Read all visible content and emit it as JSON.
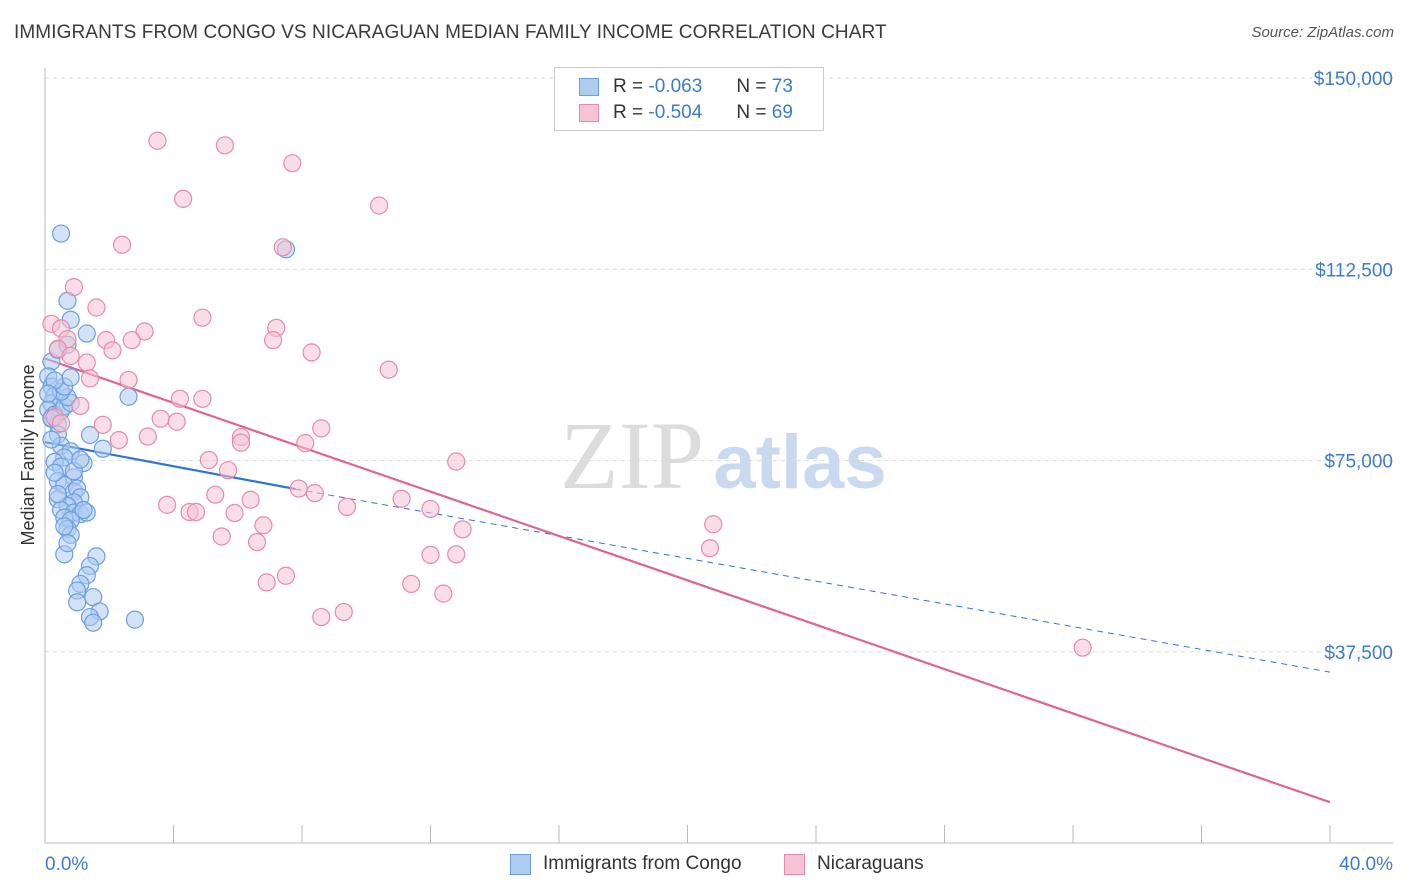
{
  "title": "IMMIGRANTS FROM CONGO VS NICARAGUAN MEDIAN FAMILY INCOME CORRELATION CHART",
  "source": "Source: ZipAtlas.com",
  "watermark": {
    "zip": "ZIP",
    "atlas": "atlas"
  },
  "legend": {
    "rows": [
      {
        "r_label": "R =",
        "r_value": "-0.063",
        "n_label": "N =",
        "n_value": "73",
        "color": "#aecbf0",
        "border": "#6a9fe0"
      },
      {
        "r_label": "R =",
        "r_value": "-0.504",
        "n_label": "N =",
        "n_value": "69",
        "color": "#f6c3d3",
        "border": "#e88aa9"
      }
    ]
  },
  "bottom_legend": [
    {
      "label": "Immigrants from Congo",
      "color": "#aecbf0",
      "border": "#6a9fe0"
    },
    {
      "label": "Nicaraguans",
      "color": "#f6c3d3",
      "border": "#e88aa9"
    }
  ],
  "chart_data": {
    "type": "scatter",
    "title": "IMMIGRANTS FROM CONGO VS NICARAGUAN MEDIAN FAMILY INCOME CORRELATION CHART",
    "xlabel": "",
    "ylabel": "Median Family Income",
    "xlim": [
      0,
      40
    ],
    "ylim": [
      0,
      150000
    ],
    "x_tick_labels": [
      "0.0%",
      "40.0%"
    ],
    "y_ticks": [
      37500,
      75000,
      112500,
      150000
    ],
    "y_tick_labels": [
      "$37,500",
      "$75,000",
      "$112,500",
      "$150,000"
    ],
    "grid": true,
    "series": [
      {
        "name": "Immigrants from Congo",
        "color": "#aecbf0",
        "stroke": "#6a9fe0",
        "line_color": "#2f73d6",
        "trend": {
          "x_solid": [
            0,
            7.8
          ],
          "y_solid": [
            78600,
            69400
          ],
          "x_dash": [
            7.8,
            40
          ],
          "y_dash": [
            69400,
            33500
          ]
        },
        "points": [
          [
            0.2,
            94400
          ],
          [
            0.1,
            91500
          ],
          [
            0.2,
            89500
          ],
          [
            0.3,
            87700
          ],
          [
            0.2,
            86200
          ],
          [
            0.1,
            85000
          ],
          [
            0.3,
            84000
          ],
          [
            0.2,
            83200
          ],
          [
            0.4,
            82100
          ],
          [
            0.5,
            84700
          ],
          [
            0.6,
            85600
          ],
          [
            0.8,
            86300
          ],
          [
            0.7,
            87400
          ],
          [
            0.5,
            88500
          ],
          [
            0.6,
            89500
          ],
          [
            0.3,
            90700
          ],
          [
            0.8,
            91300
          ],
          [
            0.4,
            96700
          ],
          [
            0.7,
            97700
          ],
          [
            0.8,
            102600
          ],
          [
            0.7,
            106300
          ],
          [
            1.3,
            99900
          ],
          [
            0.5,
            119500
          ],
          [
            7.5,
            116400
          ],
          [
            2.6,
            87500
          ],
          [
            0.4,
            80100
          ],
          [
            1.4,
            80000
          ],
          [
            0.5,
            77900
          ],
          [
            0.8,
            76800
          ],
          [
            1.8,
            77300
          ],
          [
            0.6,
            75600
          ],
          [
            0.3,
            74700
          ],
          [
            0.5,
            73800
          ],
          [
            1.2,
            74500
          ],
          [
            0.9,
            71700
          ],
          [
            0.4,
            71000
          ],
          [
            0.6,
            70200
          ],
          [
            0.9,
            68900
          ],
          [
            1.0,
            69500
          ],
          [
            1.1,
            67800
          ],
          [
            0.4,
            67400
          ],
          [
            0.9,
            66800
          ],
          [
            0.7,
            66100
          ],
          [
            0.5,
            65300
          ],
          [
            0.9,
            64800
          ],
          [
            1.1,
            64500
          ],
          [
            1.3,
            64800
          ],
          [
            0.6,
            63800
          ],
          [
            0.8,
            63300
          ],
          [
            0.7,
            61600
          ],
          [
            0.8,
            60400
          ],
          [
            0.6,
            56600
          ],
          [
            1.6,
            56200
          ],
          [
            1.4,
            54300
          ],
          [
            1.3,
            52500
          ],
          [
            1.1,
            50800
          ],
          [
            1.0,
            49500
          ],
          [
            1.5,
            48200
          ],
          [
            1.7,
            45400
          ],
          [
            1.4,
            44300
          ],
          [
            2.8,
            43800
          ],
          [
            1.5,
            43200
          ],
          [
            0.2,
            79100
          ],
          [
            0.3,
            72600
          ],
          [
            0.1,
            88100
          ],
          [
            0.2,
            83300
          ],
          [
            0.9,
            72900
          ],
          [
            1.1,
            75200
          ],
          [
            0.4,
            68400
          ],
          [
            0.6,
            62100
          ],
          [
            1.2,
            65300
          ],
          [
            0.7,
            58800
          ],
          [
            1.0,
            47200
          ]
        ]
      },
      {
        "name": "Nicaraguans",
        "color": "#f6c3d3",
        "stroke": "#e88aa9",
        "line_color": "#e0648f",
        "trend": {
          "x_solid": [
            0,
            40
          ],
          "y_solid": [
            95000,
            8000
          ]
        },
        "points": [
          [
            3.5,
            137700
          ],
          [
            5.6,
            136800
          ],
          [
            7.7,
            133300
          ],
          [
            4.3,
            126300
          ],
          [
            10.4,
            125000
          ],
          [
            2.4,
            117300
          ],
          [
            7.4,
            116800
          ],
          [
            0.9,
            109000
          ],
          [
            1.6,
            105000
          ],
          [
            4.9,
            103000
          ],
          [
            0.2,
            101800
          ],
          [
            0.5,
            100900
          ],
          [
            7.2,
            101000
          ],
          [
            3.1,
            100300
          ],
          [
            0.7,
            98800
          ],
          [
            1.9,
            98600
          ],
          [
            2.7,
            98600
          ],
          [
            7.1,
            98600
          ],
          [
            2.1,
            96600
          ],
          [
            8.3,
            96200
          ],
          [
            0.4,
            96900
          ],
          [
            0.8,
            95500
          ],
          [
            1.3,
            94200
          ],
          [
            10.7,
            92800
          ],
          [
            1.4,
            91100
          ],
          [
            2.6,
            90800
          ],
          [
            4.2,
            87100
          ],
          [
            4.9,
            87100
          ],
          [
            1.1,
            85700
          ],
          [
            0.3,
            83500
          ],
          [
            3.6,
            83200
          ],
          [
            4.1,
            82600
          ],
          [
            0.5,
            82300
          ],
          [
            1.8,
            82000
          ],
          [
            8.6,
            81300
          ],
          [
            3.2,
            79700
          ],
          [
            6.1,
            79600
          ],
          [
            2.3,
            79000
          ],
          [
            6.1,
            78500
          ],
          [
            8.1,
            78400
          ],
          [
            12.8,
            74800
          ],
          [
            5.1,
            75100
          ],
          [
            5.7,
            73100
          ],
          [
            7.9,
            69500
          ],
          [
            8.4,
            68600
          ],
          [
            5.3,
            68300
          ],
          [
            6.4,
            67300
          ],
          [
            11.1,
            67500
          ],
          [
            3.8,
            66300
          ],
          [
            4.5,
            64900
          ],
          [
            4.7,
            64900
          ],
          [
            5.9,
            64700
          ],
          [
            9.4,
            65900
          ],
          [
            12.0,
            65500
          ],
          [
            6.8,
            62300
          ],
          [
            13.0,
            61500
          ],
          [
            5.5,
            60100
          ],
          [
            6.6,
            59000
          ],
          [
            20.8,
            62500
          ],
          [
            20.7,
            57800
          ],
          [
            12.0,
            56500
          ],
          [
            12.8,
            56600
          ],
          [
            7.5,
            52400
          ],
          [
            6.9,
            51100
          ],
          [
            11.4,
            50800
          ],
          [
            12.4,
            48900
          ],
          [
            9.3,
            45300
          ],
          [
            8.6,
            44300
          ],
          [
            32.3,
            38300
          ]
        ]
      }
    ]
  }
}
